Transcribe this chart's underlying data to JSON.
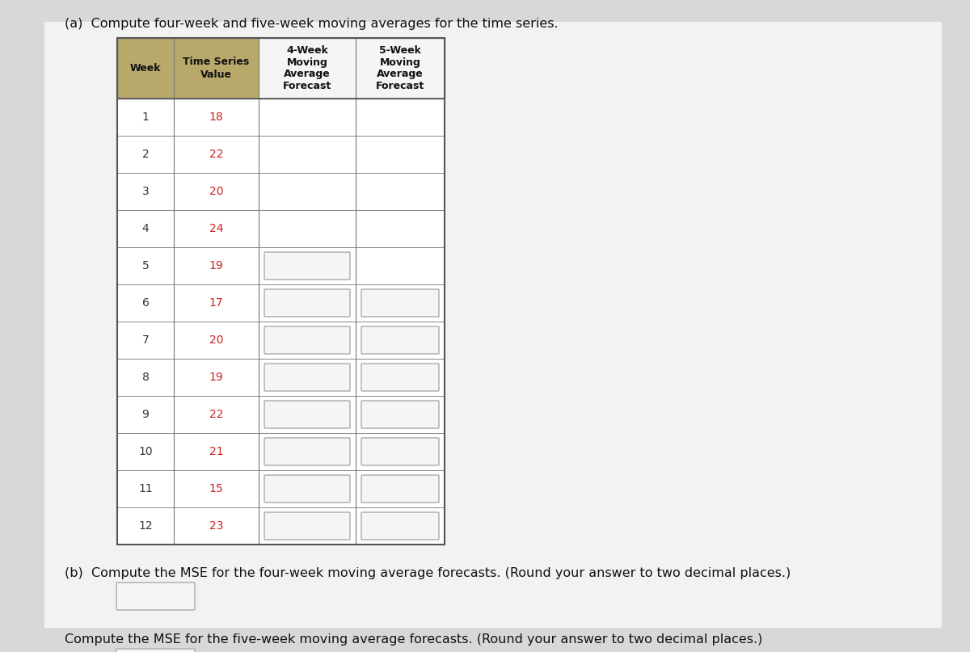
{
  "title_a": "(a)  Compute four-week and five-week moving averages for the time series.",
  "title_b": "(b)  Compute the MSE for the four-week moving average forecasts. (Round your answer to two decimal places.)",
  "title_c": "Compute the MSE for the five-week moving average forecasts. (Round your answer to two decimal places.)",
  "col_headers": [
    "Week",
    "Time Series\nValue",
    "4-Week\nMoving\nAverage\nForecast",
    "5-Week\nMoving\nAverage\nForecast"
  ],
  "weeks": [
    1,
    2,
    3,
    4,
    5,
    6,
    7,
    8,
    9,
    10,
    11,
    12
  ],
  "values": [
    18,
    22,
    20,
    24,
    19,
    17,
    20,
    19,
    22,
    21,
    15,
    23
  ],
  "header_bg_left": "#b8a96a",
  "header_bg_right": "#f5f5f5",
  "header_text_color": "#111111",
  "value_color": "#cc2222",
  "week_color": "#333333",
  "row_bg": "#ffffff",
  "border_color": "#888888",
  "input_box_bg": "#f5f5f5",
  "input_box_border": "#aaaaaa",
  "page_bg": "#d8d8d8",
  "content_bg": "#f0f0f0"
}
